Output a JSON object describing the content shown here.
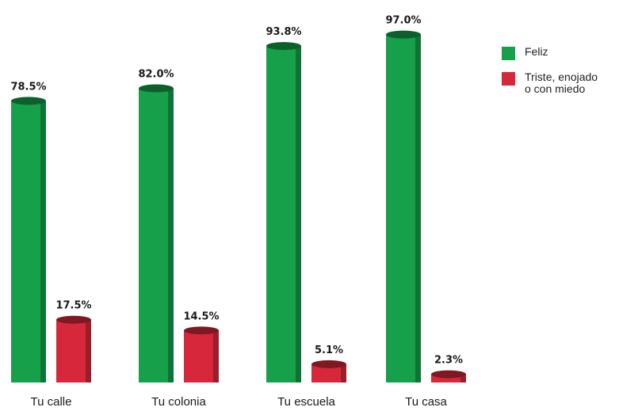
{
  "chart_data": {
    "type": "bar",
    "categories": [
      "Tu calle",
      "Tu colonia",
      "Tu escuela",
      "Tu casa"
    ],
    "series": [
      {
        "name": "Feliz",
        "color": "#16a04a",
        "values": [
          78.5,
          82.0,
          93.8,
          97.0
        ],
        "labels": [
          "78.5%",
          "82.0%",
          "93.8%",
          "97.0%"
        ]
      },
      {
        "name": "Triste, enojado\no con miedo",
        "color": "#d6283a",
        "values": [
          17.5,
          14.5,
          5.1,
          2.3
        ],
        "labels": [
          "17.5%",
          "14.5%",
          "5.1%",
          "2.3%"
        ]
      }
    ],
    "ylim": [
      0,
      100
    ],
    "grid": false,
    "legend_position": "top-right",
    "unit": "%"
  }
}
